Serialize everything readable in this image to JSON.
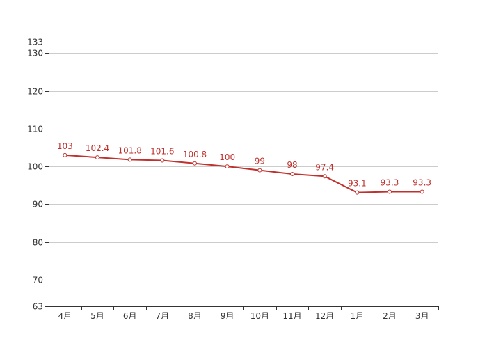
{
  "chart_data": {
    "type": "line",
    "categories": [
      "4月",
      "5月",
      "6月",
      "7月",
      "8月",
      "9月",
      "10月",
      "11月",
      "12月",
      "1月",
      "2月",
      "3月"
    ],
    "series": [
      {
        "values": [
          103,
          102.4,
          101.8,
          101.6,
          100.8,
          100,
          99,
          98,
          97.4,
          93.1,
          93.3,
          93.3
        ]
      }
    ],
    "data_labels": [
      "103",
      "102.4",
      "101.8",
      "101.6",
      "100.8",
      "100",
      "99",
      "98",
      "97.4",
      "93.1",
      "93.3",
      "93.3"
    ],
    "ylim": [
      63,
      133
    ],
    "yticks": [
      63,
      70,
      80,
      90,
      100,
      110,
      120,
      130,
      133
    ],
    "ytick_labels": [
      "63",
      "70",
      "80",
      "90",
      "100",
      "110",
      "120",
      "130",
      "133"
    ],
    "grid": true,
    "legend": "none",
    "colors": {
      "line": "#c0302d",
      "label": "#c0302d",
      "grid": "#cccccc",
      "axis": "#333333",
      "marker_fill": "#ffffff"
    }
  }
}
